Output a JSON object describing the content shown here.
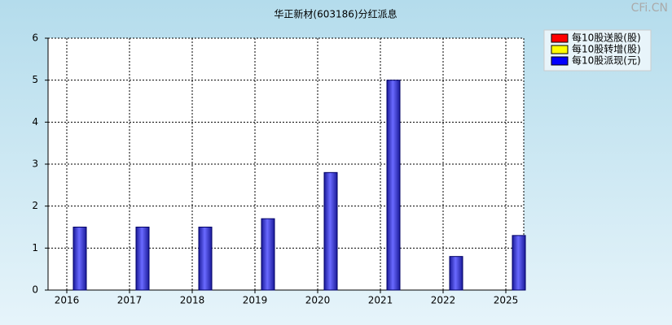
{
  "chart_data": {
    "type": "bar",
    "title": "华正新材(603186)分红派息",
    "watermark": "CFi.CN",
    "categories": [
      "2016",
      "2017",
      "2018",
      "2019",
      "2020",
      "2021",
      "2022",
      "2025"
    ],
    "series": [
      {
        "name": "每10股送股(股)",
        "color": "#ff0000",
        "values": [
          null,
          null,
          null,
          null,
          null,
          null,
          null,
          null
        ]
      },
      {
        "name": "每10股转增(股)",
        "color": "#ffff00",
        "values": [
          null,
          null,
          null,
          null,
          null,
          null,
          null,
          null
        ]
      },
      {
        "name": "每10股派现(元)",
        "color": "#0000ff",
        "values": [
          1.5,
          1.5,
          1.5,
          1.7,
          2.8,
          5.0,
          0.8,
          1.3
        ]
      }
    ],
    "ylim": [
      0,
      6
    ],
    "yticks": [
      0,
      1,
      2,
      3,
      4,
      5,
      6
    ],
    "grid": true,
    "legend": "right"
  }
}
